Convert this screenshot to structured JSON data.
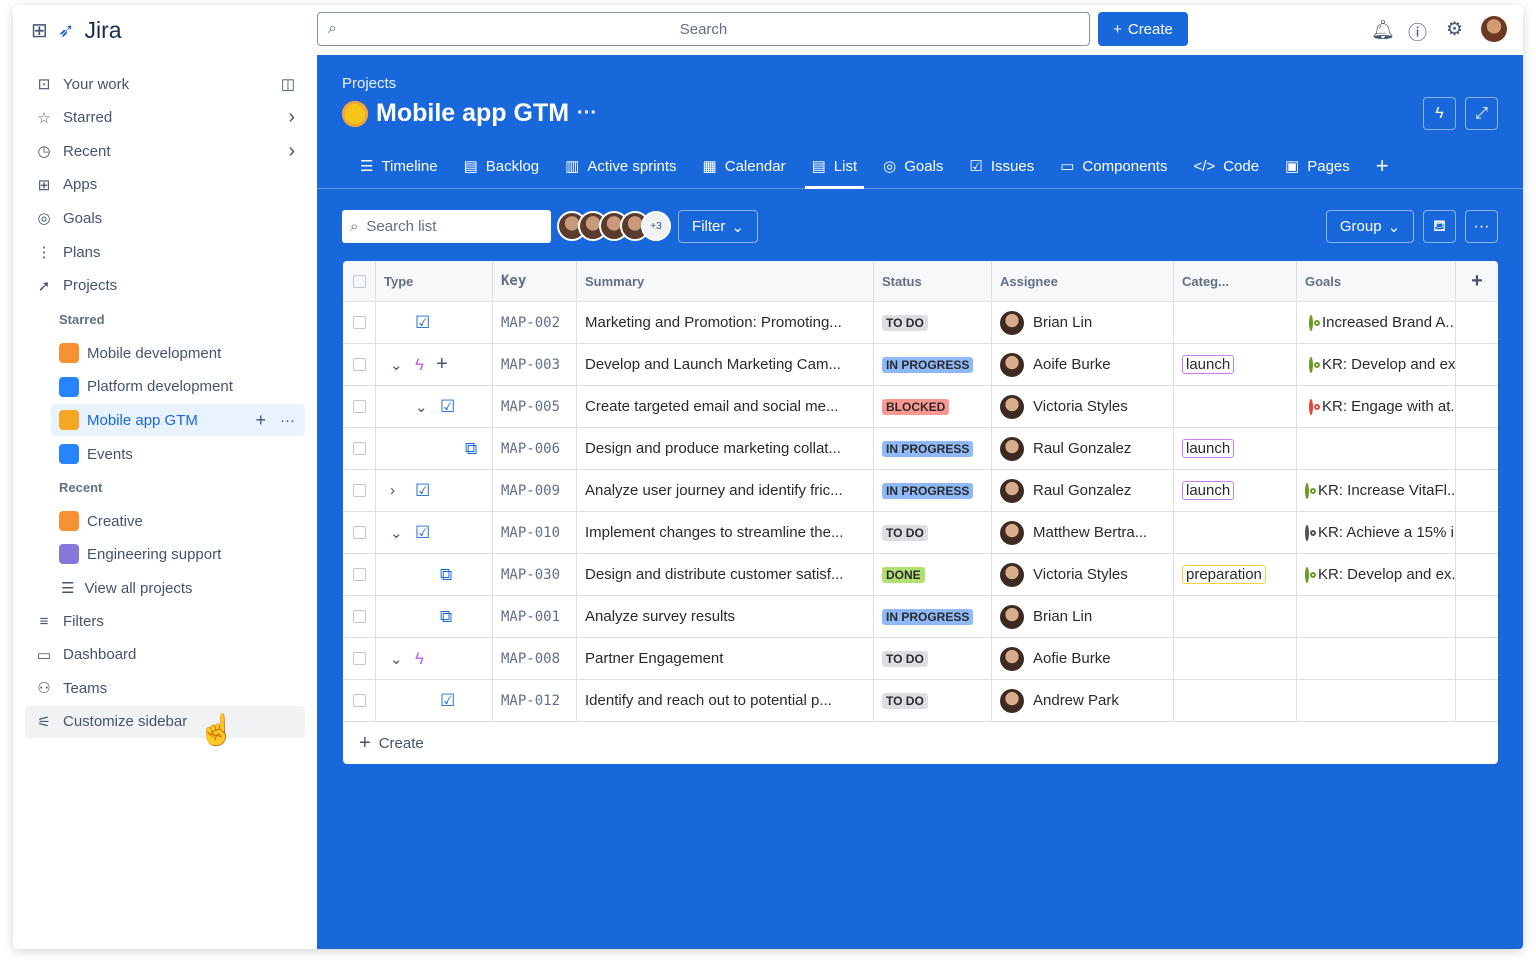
{
  "app": {
    "name": "Jira"
  },
  "top": {
    "search_placeholder": "Search",
    "create_label": "Create"
  },
  "sidebar": {
    "items": [
      {
        "label": "Your work",
        "icon": "inbox-icon"
      },
      {
        "label": "Starred",
        "icon": "star-icon"
      },
      {
        "label": "Recent",
        "icon": "clock-icon"
      },
      {
        "label": "Apps",
        "icon": "apps-icon"
      },
      {
        "label": "Goals",
        "icon": "goal-icon"
      },
      {
        "label": "Plans",
        "icon": "plans-icon"
      },
      {
        "label": "Projects",
        "icon": "rocket-icon"
      }
    ],
    "starred_label": "Starred",
    "starred": [
      {
        "label": "Mobile development",
        "color": "#f79232"
      },
      {
        "label": "Platform development",
        "color": "#2684ff"
      },
      {
        "label": "Mobile app GTM",
        "color": "#f5a623"
      }
    ],
    "recent_label": "Recent",
    "recent": [
      {
        "label": "Events",
        "color": "#2684ff"
      },
      {
        "label": "Creative",
        "color": "#f79232"
      },
      {
        "label": "Engineering support",
        "color": "#8777d9"
      }
    ],
    "view_all": "View all projects",
    "bottom": [
      {
        "label": "Filters",
        "icon": "filter-icon"
      },
      {
        "label": "Dashboard",
        "icon": "dashboard-icon"
      },
      {
        "label": "Teams",
        "icon": "teams-icon"
      },
      {
        "label": "Customize sidebar",
        "icon": "customize-icon"
      }
    ]
  },
  "project": {
    "breadcrumb": "Projects",
    "title": "Mobile app GTM"
  },
  "tabs": [
    {
      "label": "Timeline",
      "icon": "☰"
    },
    {
      "label": "Backlog",
      "icon": "▤"
    },
    {
      "label": "Active sprints",
      "icon": "▥"
    },
    {
      "label": "Calendar",
      "icon": "▦"
    },
    {
      "label": "List",
      "icon": "▤",
      "active": true
    },
    {
      "label": "Goals",
      "icon": "◎"
    },
    {
      "label": "Issues",
      "icon": "☑"
    },
    {
      "label": "Components",
      "icon": "▭"
    },
    {
      "label": "Code",
      "icon": "</>"
    },
    {
      "label": "Pages",
      "icon": "▣"
    }
  ],
  "toolbar": {
    "search_placeholder": "Search list",
    "avatar_more": "+3",
    "filter_label": "Filter",
    "group_label": "Group"
  },
  "table": {
    "headers": [
      "Type",
      "Key",
      "Summary",
      "Status",
      "Assignee",
      "Categ...",
      "Goals"
    ],
    "rows": [
      {
        "type": "task",
        "indent": 0,
        "expand": "",
        "key": "MAP-002",
        "summary": "Marketing and Promotion: Promoting...",
        "status": "TO DO",
        "assignee": "Brian Lin",
        "category": "",
        "goal": "Increased Brand A...",
        "goal_color": "#6a9a23"
      },
      {
        "type": "epic",
        "indent": 0,
        "expand": "down",
        "add": true,
        "key": "MAP-003",
        "summary": "Develop and Launch Marketing Cam...",
        "status": "IN PROGRESS",
        "assignee": "Aoife Burke",
        "category": "launch",
        "goal": "KR: Develop and ex...",
        "goal_color": "#6a9a23"
      },
      {
        "type": "task",
        "indent": 1,
        "expand": "down",
        "key": "MAP-005",
        "summary": "Create targeted email and social me...",
        "status": "BLOCKED",
        "assignee": "Victoria Styles",
        "category": "",
        "goal": "KR: Engage with at...",
        "goal_color": "#e2483d"
      },
      {
        "type": "subtask",
        "indent": 2,
        "expand": "",
        "key": "MAP-006",
        "summary": "Design and produce marketing collat...",
        "status": "IN PROGRESS",
        "assignee": "Raul Gonzalez",
        "category": "launch",
        "goal": "",
        "goal_color": ""
      },
      {
        "type": "task",
        "indent": 0,
        "expand": "right",
        "key": "MAP-009",
        "summary": "Analyze user journey and identify fric...",
        "status": "IN PROGRESS",
        "assignee": "Raul Gonzalez",
        "category": "launch",
        "goal": "KR: Increase VitaFl...",
        "goal_color": "#6a9a23"
      },
      {
        "type": "task",
        "indent": 0,
        "expand": "down",
        "key": "MAP-010",
        "summary": "Implement changes to streamline the...",
        "status": "TO DO",
        "assignee": "Matthew Bertra...",
        "category": "",
        "goal": "KR: Achieve a 15% i...",
        "goal_color": "#505258"
      },
      {
        "type": "subtask",
        "indent": 1,
        "expand": "",
        "key": "MAP-030",
        "summary": "Design and distribute customer satisf...",
        "status": "DONE",
        "assignee": "Victoria Styles",
        "category": "preparation",
        "goal": "KR: Develop and ex...",
        "goal_color": "#6a9a23"
      },
      {
        "type": "subtask",
        "indent": 1,
        "expand": "",
        "key": "MAP-001",
        "summary": "Analyze survey results",
        "status": "IN PROGRESS",
        "assignee": "Brian Lin",
        "category": "",
        "goal": "",
        "goal_color": ""
      },
      {
        "type": "epic",
        "indent": 0,
        "expand": "down",
        "key": "MAP-008",
        "summary": "Partner Engagement",
        "status": "TO DO",
        "assignee": "Aofie Burke",
        "category": "",
        "goal": "",
        "goal_color": ""
      },
      {
        "type": "task",
        "indent": 1,
        "expand": "",
        "key": "MAP-012",
        "summary": "Identify and reach out to potential p...",
        "status": "TO DO",
        "assignee": "Andrew Park",
        "category": "",
        "goal": "",
        "goal_color": ""
      }
    ],
    "create_label": "Create"
  },
  "colors": {
    "brand": "#1868db",
    "todo": "#dddee1",
    "in_progress": "#8fb8f6",
    "blocked": "#fd9891",
    "done": "#b3df72"
  }
}
